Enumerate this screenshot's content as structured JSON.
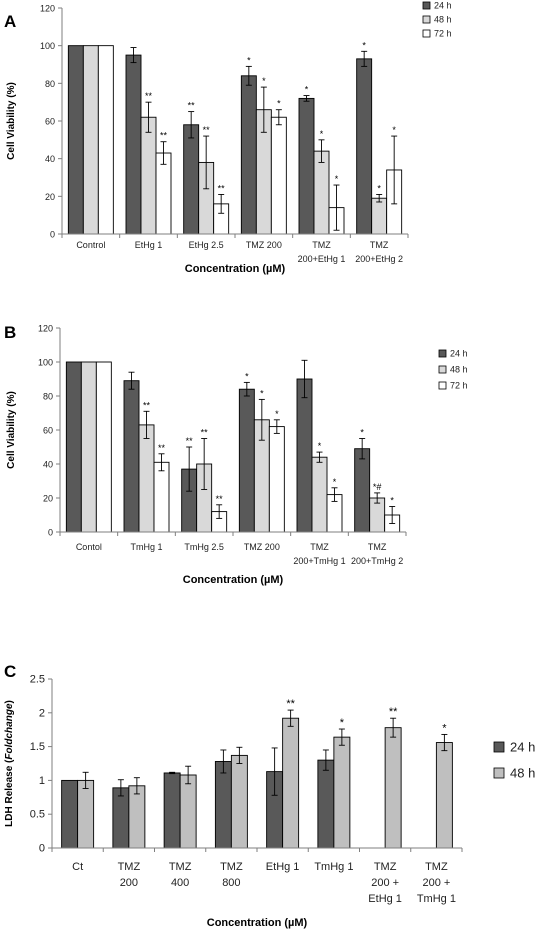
{
  "chart_data": [
    {
      "panel_label": "A",
      "type": "bar",
      "title": "",
      "xlabel": "Concentration (µM)",
      "ylabel": "Cell Viability (%)",
      "ylim": [
        0,
        120
      ],
      "yticks": [
        0,
        20,
        40,
        60,
        80,
        100,
        120
      ],
      "grid": false,
      "legend": "top-right",
      "categories": [
        [
          "Control"
        ],
        [
          "EtHg 1"
        ],
        [
          "EtHg 2.5"
        ],
        [
          "TMZ 200"
        ],
        [
          "TMZ",
          "200+EtHg 1"
        ],
        [
          "TMZ",
          "200+EtHg 2"
        ]
      ],
      "series": [
        {
          "name": "24 h",
          "color": "#595959",
          "values": [
            100,
            95,
            58,
            84,
            72,
            93
          ],
          "errors": [
            0,
            4,
            7,
            5,
            1.5,
            4
          ],
          "annotations": [
            "",
            "",
            "**",
            "*",
            "*",
            "*"
          ]
        },
        {
          "name": "48 h",
          "color": "#d9d9d9",
          "values": [
            100,
            62,
            38,
            66,
            44,
            19
          ],
          "errors": [
            0,
            8,
            14,
            12,
            6,
            2
          ],
          "annotations": [
            "",
            "**",
            "**",
            "*",
            "*",
            "*"
          ]
        },
        {
          "name": "72 h",
          "color": "#ffffff",
          "values": [
            100,
            43,
            16,
            62,
            14,
            34
          ],
          "errors": [
            0,
            6,
            5,
            4,
            12,
            18
          ],
          "annotations": [
            "",
            "**",
            "**",
            "*",
            "*",
            "*"
          ]
        }
      ]
    },
    {
      "panel_label": "B",
      "type": "bar",
      "title": "",
      "xlabel": "Concentration (µM)",
      "ylabel": "Cell Viability (%)",
      "ylim": [
        0,
        120
      ],
      "yticks": [
        0,
        20,
        40,
        60,
        80,
        100,
        120
      ],
      "grid": false,
      "legend": "top-right",
      "categories": [
        [
          "Contol"
        ],
        [
          "TmHg 1"
        ],
        [
          "TmHg 2.5"
        ],
        [
          "TMZ 200"
        ],
        [
          "TMZ",
          "200+TmHg 1"
        ],
        [
          "TMZ",
          "200+TmHg 2"
        ]
      ],
      "series": [
        {
          "name": "24 h",
          "color": "#595959",
          "values": [
            100,
            89,
            37,
            84,
            90,
            49
          ],
          "errors": [
            0,
            5,
            13,
            4,
            11,
            6
          ],
          "annotations": [
            "",
            "",
            "**",
            "*",
            "",
            "*"
          ]
        },
        {
          "name": "48 h",
          "color": "#d9d9d9",
          "values": [
            100,
            63,
            40,
            66,
            44,
            20
          ],
          "errors": [
            0,
            8,
            15,
            12,
            3,
            3
          ],
          "annotations": [
            "",
            "**",
            "**",
            "*",
            "*",
            "*#"
          ]
        },
        {
          "name": "72 h",
          "color": "#ffffff",
          "values": [
            100,
            41,
            12,
            62,
            22,
            10
          ],
          "errors": [
            0,
            5,
            4,
            4,
            4,
            5
          ],
          "annotations": [
            "",
            "**",
            "**",
            "*",
            "*",
            "*"
          ]
        }
      ]
    },
    {
      "panel_label": "C",
      "type": "bar",
      "title": "",
      "xlabel": "Concentration (µM)",
      "ylabel_main": "LDH Release (",
      "ylabel_italic": "Foldchange",
      "ylabel_end": ")",
      "ylim": [
        0,
        2.5
      ],
      "yticks": [
        "0",
        "0.5",
        "1",
        "1.5",
        "2",
        "2.5"
      ],
      "grid": false,
      "legend": "right",
      "categories": [
        [
          "Ct"
        ],
        [
          "TMZ",
          "200"
        ],
        [
          "TMZ",
          "400"
        ],
        [
          "TMZ",
          "800"
        ],
        [
          "EtHg 1"
        ],
        [
          "TmHg 1"
        ],
        [
          "TMZ",
          "200 +",
          "EtHg 1"
        ],
        [
          "TMZ",
          "200 +",
          "TmHg 1"
        ]
      ],
      "series": [
        {
          "name": "24 h",
          "color": "#595959",
          "values": [
            1.0,
            0.89,
            1.11,
            1.28,
            1.13,
            1.3,
            null,
            null
          ],
          "errors": [
            0,
            0.12,
            0.01,
            0.17,
            0.35,
            0.15,
            0,
            0
          ],
          "annotations": [
            "",
            "",
            "",
            "",
            "",
            "",
            "",
            ""
          ]
        },
        {
          "name": "48 h",
          "color": "#bfbfbf",
          "values": [
            1.0,
            0.92,
            1.08,
            1.37,
            1.92,
            1.64,
            1.78,
            1.56
          ],
          "errors": [
            0.12,
            0.12,
            0.13,
            0.12,
            0.12,
            0.12,
            0.14,
            0.12
          ],
          "annotations": [
            "",
            "",
            "",
            "",
            "**",
            "*",
            "**",
            "*"
          ]
        }
      ]
    }
  ]
}
